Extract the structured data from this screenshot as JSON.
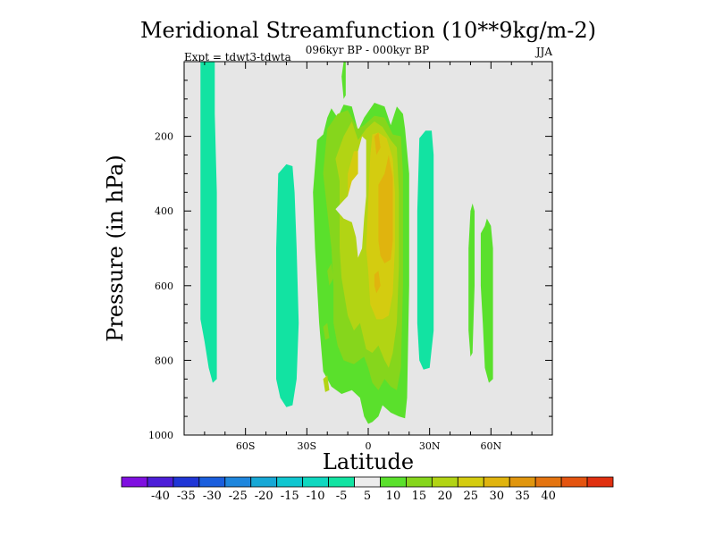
{
  "chart_data": {
    "type": "heatmap",
    "title": "Meridional Streamfunction (10**9kg/m-2)",
    "subtitle_center": "096kyr BP - 000kyr BP",
    "subtitle_left": "Expt = tdwt3-tdwta",
    "subtitle_right": "JJA",
    "xlabel": "Latitude",
    "ylabel": "Pressure (in hPa)",
    "xlim": [
      -90,
      90
    ],
    "ylim": [
      1000,
      0
    ],
    "x_ticks": [
      {
        "value": -60,
        "label": "60S"
      },
      {
        "value": -30,
        "label": "30S"
      },
      {
        "value": 0,
        "label": "0"
      },
      {
        "value": 30,
        "label": "30N"
      },
      {
        "value": 60,
        "label": "60N"
      }
    ],
    "y_ticks": [
      {
        "value": 200,
        "label": "200"
      },
      {
        "value": 400,
        "label": "400"
      },
      {
        "value": 600,
        "label": "600"
      },
      {
        "value": 800,
        "label": "800"
      },
      {
        "value": 1000,
        "label": "1000"
      }
    ],
    "background_color": "#e6e6e6",
    "colorbar": {
      "colors": [
        "#7f10e0",
        "#4c1ed8",
        "#2036d6",
        "#1a5edd",
        "#1e86dd",
        "#17a8d6",
        "#10c6d0",
        "#0fd8c0",
        "#12e3a2",
        "#ececec",
        "#5ae02c",
        "#86d61c",
        "#b2d414",
        "#d4cc10",
        "#e0b40e",
        "#e0960e",
        "#e47410",
        "#e45410",
        "#e03010"
      ],
      "labels": [
        "-40",
        "-35",
        "-30",
        "-25",
        "-20",
        "-15",
        "-10",
        "-5",
        "5",
        "10",
        "15",
        "20",
        "25",
        "30",
        "35",
        "40"
      ]
    },
    "regions": [
      {
        "level": -10,
        "color": "#12e3a2",
        "points": [
          [
            -82,
            0
          ],
          [
            -75,
            0
          ],
          [
            -75,
            140
          ],
          [
            -74,
            350
          ],
          [
            -74,
            680
          ],
          [
            -74,
            850
          ],
          [
            -76,
            860
          ],
          [
            -78,
            820
          ],
          [
            -80,
            750
          ],
          [
            -82,
            690
          ]
        ]
      },
      {
        "level": -10,
        "color": "#12e3a2",
        "points": [
          [
            -44,
            300
          ],
          [
            -40,
            275
          ],
          [
            -37,
            280
          ],
          [
            -36,
            350
          ],
          [
            -35,
            500
          ],
          [
            -34,
            700
          ],
          [
            -35,
            850
          ],
          [
            -37,
            920
          ],
          [
            -40,
            925
          ],
          [
            -43,
            900
          ],
          [
            -45,
            850
          ],
          [
            -45,
            500
          ]
        ]
      },
      {
        "level": -10,
        "color": "#12e3a2",
        "points": [
          [
            25,
            205
          ],
          [
            28,
            185
          ],
          [
            31,
            185
          ],
          [
            32,
            250
          ],
          [
            32,
            500
          ],
          [
            32,
            720
          ],
          [
            30,
            820
          ],
          [
            27,
            825
          ],
          [
            25,
            800
          ],
          [
            24,
            700
          ],
          [
            24,
            400
          ]
        ]
      },
      {
        "level": -10,
        "color": "#12e3a2",
        "points": [
          [
            -5,
            345
          ],
          [
            -4,
            335
          ],
          [
            -3,
            345
          ],
          [
            -3,
            385
          ],
          [
            -4,
            395
          ],
          [
            -5,
            385
          ]
        ]
      },
      {
        "level": -10,
        "color": "#12e3a2",
        "points": [
          [
            -1,
            180
          ],
          [
            1,
            185
          ],
          [
            1,
            200
          ],
          [
            -1,
            195
          ]
        ]
      },
      {
        "level": 5,
        "color": "#5ae02c",
        "points": [
          [
            -25,
            210
          ],
          [
            -22,
            195
          ],
          [
            -20,
            150
          ],
          [
            -18,
            125
          ],
          [
            -15,
            150
          ],
          [
            -12,
            115
          ],
          [
            -8,
            120
          ],
          [
            -5,
            185
          ],
          [
            -2,
            150
          ],
          [
            3,
            110
          ],
          [
            8,
            120
          ],
          [
            11,
            170
          ],
          [
            14,
            120
          ],
          [
            17,
            140
          ],
          [
            18,
            180
          ],
          [
            20,
            300
          ],
          [
            20,
            600
          ],
          [
            19,
            900
          ],
          [
            18,
            955
          ],
          [
            15,
            950
          ],
          [
            11,
            940
          ],
          [
            7,
            920
          ],
          [
            5,
            950
          ],
          [
            2,
            965
          ],
          [
            0,
            970
          ],
          [
            -2,
            950
          ],
          [
            -4,
            900
          ],
          [
            -8,
            880
          ],
          [
            -13,
            890
          ],
          [
            -18,
            870
          ],
          [
            -22,
            830
          ],
          [
            -24,
            700
          ],
          [
            -26,
            500
          ],
          [
            -27,
            350
          ]
        ]
      },
      {
        "level": 5,
        "color": "#5ae02c",
        "points": [
          [
            -14,
            370
          ],
          [
            -11,
            350
          ],
          [
            -8,
            385
          ],
          [
            -13,
            400
          ]
        ]
      },
      {
        "level": 5,
        "color": "#5ae02c",
        "points": [
          [
            -13,
            40
          ],
          [
            -12,
            0
          ],
          [
            -11,
            0
          ],
          [
            -11,
            90
          ],
          [
            -12,
            100
          ]
        ]
      },
      {
        "level": 5,
        "color": "#5ae02c",
        "points": [
          [
            55,
            460
          ],
          [
            57,
            440
          ],
          [
            58,
            420
          ],
          [
            60,
            440
          ],
          [
            61,
            500
          ],
          [
            61,
            700
          ],
          [
            61,
            850
          ],
          [
            59,
            860
          ],
          [
            57,
            820
          ],
          [
            56,
            700
          ],
          [
            55,
            600
          ]
        ]
      },
      {
        "level": 5,
        "color": "#5ae02c",
        "points": [
          [
            50,
            400
          ],
          [
            51,
            380
          ],
          [
            52,
            400
          ],
          [
            52,
            600
          ],
          [
            51,
            780
          ],
          [
            50,
            790
          ],
          [
            49,
            720
          ],
          [
            49,
            500
          ]
        ]
      },
      {
        "level": 10,
        "color": "#86d61c",
        "points": [
          [
            -20,
            180
          ],
          [
            -15,
            140
          ],
          [
            -10,
            130
          ],
          [
            -5,
            180
          ],
          [
            -2,
            170
          ],
          [
            3,
            145
          ],
          [
            8,
            150
          ],
          [
            12,
            195
          ],
          [
            16,
            200
          ],
          [
            17,
            300
          ],
          [
            17,
            600
          ],
          [
            16,
            820
          ],
          [
            14,
            880
          ],
          [
            11,
            870
          ],
          [
            8,
            850
          ],
          [
            5,
            880
          ],
          [
            2,
            860
          ],
          [
            0,
            820
          ],
          [
            -2,
            790
          ],
          [
            -7,
            810
          ],
          [
            -12,
            800
          ],
          [
            -15,
            760
          ],
          [
            -17,
            700
          ],
          [
            -17,
            600
          ],
          [
            -18,
            500
          ],
          [
            -20,
            400
          ],
          [
            -22,
            300
          ]
        ]
      },
      {
        "level": 10,
        "color": "#86d61c",
        "points": [
          [
            -20,
            560
          ],
          [
            -18,
            540
          ],
          [
            -17,
            580
          ],
          [
            -19,
            600
          ]
        ]
      },
      {
        "level": 10,
        "color": "#86d61c",
        "points": [
          [
            -22,
            710
          ],
          [
            -20,
            700
          ],
          [
            -19,
            740
          ],
          [
            -21,
            745
          ]
        ]
      },
      {
        "level": 15,
        "color": "#b2d414",
        "points": [
          [
            -16,
            260
          ],
          [
            -12,
            200
          ],
          [
            -8,
            160
          ],
          [
            -5,
            210
          ],
          [
            -1,
            180
          ],
          [
            3,
            160
          ],
          [
            7,
            175
          ],
          [
            11,
            210
          ],
          [
            14,
            230
          ],
          [
            15,
            350
          ],
          [
            15,
            550
          ],
          [
            14,
            700
          ],
          [
            12,
            780
          ],
          [
            10,
            820
          ],
          [
            8,
            800
          ],
          [
            5,
            760
          ],
          [
            2,
            780
          ],
          [
            -1,
            770
          ],
          [
            -4,
            700
          ],
          [
            -7,
            720
          ],
          [
            -10,
            680
          ],
          [
            -13,
            580
          ],
          [
            -14,
            500
          ],
          [
            -14,
            420
          ],
          [
            -14,
            320
          ]
        ]
      },
      {
        "level": 15,
        "color": "#b2d414",
        "points": [
          [
            -22,
            850
          ],
          [
            -20,
            840
          ],
          [
            -19,
            880
          ],
          [
            -21,
            885
          ]
        ]
      },
      {
        "level": 20,
        "color": "#d4cc10",
        "points": [
          [
            -10,
            300
          ],
          [
            -7,
            240
          ],
          [
            -4,
            240
          ],
          [
            -3,
            300
          ],
          [
            -5,
            380
          ],
          [
            -7,
            430
          ],
          [
            -9,
            400
          ],
          [
            -10,
            380
          ]
        ]
      },
      {
        "level": 20,
        "color": "#d4cc10",
        "points": [
          [
            2,
            195
          ],
          [
            5,
            190
          ],
          [
            9,
            205
          ],
          [
            12,
            260
          ],
          [
            13,
            350
          ],
          [
            13,
            500
          ],
          [
            12,
            620
          ],
          [
            10,
            680
          ],
          [
            7,
            690
          ],
          [
            4,
            690
          ],
          [
            1,
            650
          ],
          [
            0,
            560
          ],
          [
            -1,
            500
          ],
          [
            0,
            380
          ],
          [
            1,
            250
          ]
        ]
      },
      {
        "level": 25,
        "color": "#e0b40e",
        "points": [
          [
            5,
            330
          ],
          [
            8,
            300
          ],
          [
            10,
            250
          ],
          [
            12,
            310
          ],
          [
            12,
            400
          ],
          [
            12,
            480
          ],
          [
            11,
            530
          ],
          [
            8,
            540
          ],
          [
            6,
            520
          ],
          [
            5,
            480
          ]
        ]
      },
      {
        "level": 25,
        "color": "#e0b40e",
        "points": [
          [
            3,
            570
          ],
          [
            5,
            560
          ],
          [
            6,
            600
          ],
          [
            4,
            620
          ],
          [
            3,
            600
          ]
        ]
      },
      {
        "level": 25,
        "color": "#e0b40e",
        "points": [
          [
            3,
            200
          ],
          [
            5,
            190
          ],
          [
            6,
            230
          ],
          [
            4,
            250
          ]
        ]
      },
      {
        "level": 0,
        "color": "#e6e6e6",
        "points": [
          [
            -16,
            395
          ],
          [
            -10,
            360
          ],
          [
            -8,
            320
          ],
          [
            -5,
            300
          ],
          [
            -5,
            240
          ],
          [
            -3,
            200
          ],
          [
            -1,
            210
          ],
          [
            -1,
            280
          ],
          [
            -1,
            360
          ],
          [
            -2,
            420
          ],
          [
            -3,
            500
          ],
          [
            -5,
            525
          ],
          [
            -6,
            470
          ],
          [
            -8,
            430
          ],
          [
            -12,
            420
          ]
        ]
      }
    ]
  }
}
